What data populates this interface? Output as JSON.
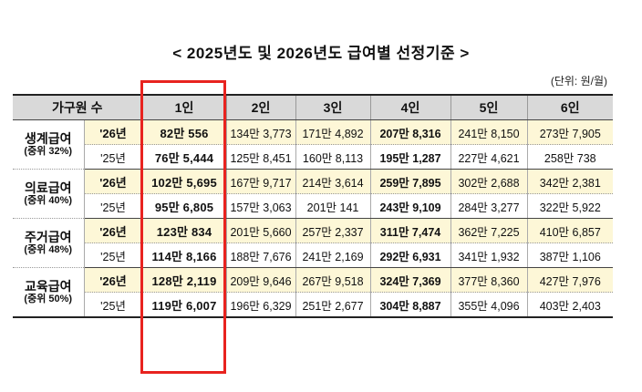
{
  "title": "< 2025년도 및 2026년도 급여별 선정기준 >",
  "unit": "(단위: 원/월)",
  "header": [
    "가구원 수",
    "",
    "1인",
    "2인",
    "3인",
    "4인",
    "5인",
    "6인"
  ],
  "groups": [
    {
      "name": "생계급여",
      "sub": "(중위 32%)",
      "rows": [
        {
          "year": "'26년",
          "values": [
            "82만 556",
            "134만 3,773",
            "171만 4,892",
            "207만 8,316",
            "241만 8,150",
            "273만 7,905"
          ]
        },
        {
          "year": "'25년",
          "values": [
            "76만 5,444",
            "125만 8,451",
            "160만 8,113",
            "195만 1,287",
            "227만 4,621",
            "258만 738"
          ]
        }
      ]
    },
    {
      "name": "의료급여",
      "sub": "(중위 40%)",
      "rows": [
        {
          "year": "'26년",
          "values": [
            "102만 5,695",
            "167만 9,717",
            "214만 3,614",
            "259만 7,895",
            "302만 2,688",
            "342만 2,381"
          ]
        },
        {
          "year": "'25년",
          "values": [
            "95만 6,805",
            "157만 3,063",
            "201만 141",
            "243만 9,109",
            "284만 3,277",
            "322만 5,922"
          ]
        }
      ]
    },
    {
      "name": "주거급여",
      "sub": "(중위 48%)",
      "rows": [
        {
          "year": "'26년",
          "values": [
            "123만 834",
            "201만 5,660",
            "257만 2,337",
            "311만 7,474",
            "362만 7,225",
            "410만 6,857"
          ]
        },
        {
          "year": "'25년",
          "values": [
            "114만 8,166",
            "188만 7,676",
            "241만 2,169",
            "292만 6,931",
            "341만 1,932",
            "387만 1,106"
          ]
        }
      ]
    },
    {
      "name": "교육급여",
      "sub": "(중위 50%)",
      "rows": [
        {
          "year": "'26년",
          "values": [
            "128만 2,119",
            "209만 9,646",
            "267만 9,518",
            "324만 7,369",
            "377만 8,360",
            "427만 7,976"
          ]
        },
        {
          "year": "'25년",
          "values": [
            "119만 6,007",
            "196만 6,329",
            "251만 2,677",
            "304만 8,887",
            "355만 4,096",
            "403만 2,403"
          ]
        }
      ]
    }
  ],
  "highlight_color": "#e8231f",
  "highlight_column": "1인"
}
